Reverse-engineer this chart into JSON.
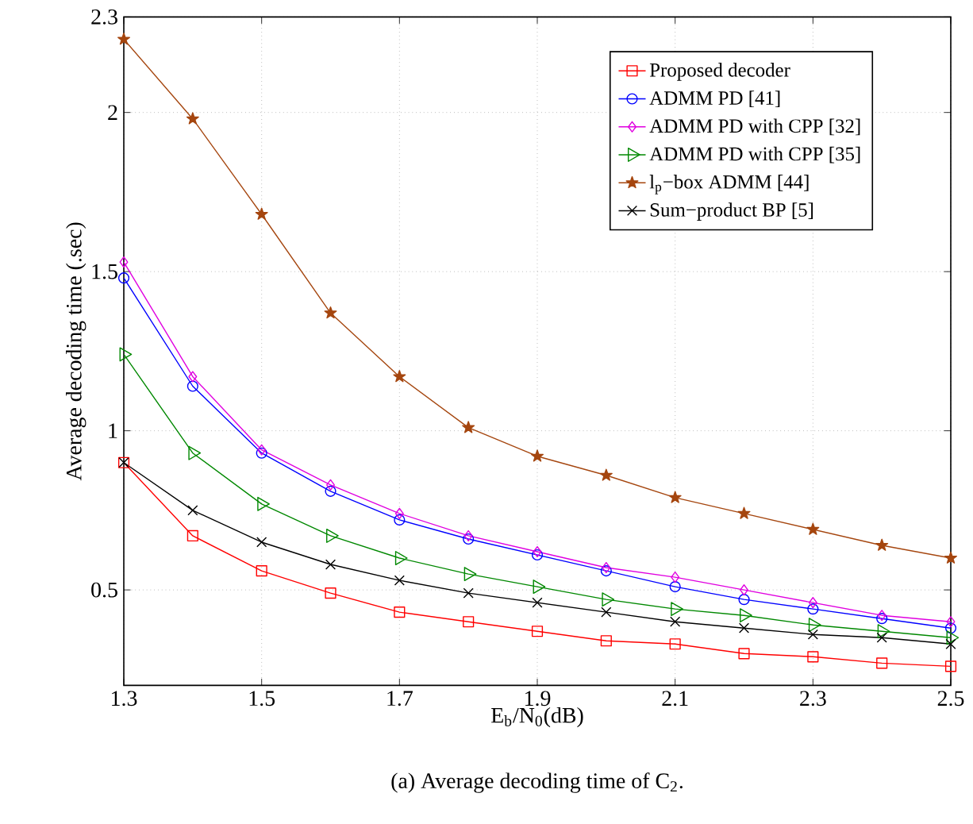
{
  "chart_data": {
    "type": "line",
    "xlabel": "E$_{b}$/N$_{0}$(dB)",
    "ylabel": "Average decoding time (.sec)",
    "annotations": [
      "(a) Average decoding time of C$_{2}$."
    ],
    "x": [
      1.3,
      1.4,
      1.5,
      1.6,
      1.7,
      1.8,
      1.9,
      2.0,
      2.1,
      2.2,
      2.3,
      2.4,
      2.5
    ],
    "xlim": [
      1.3,
      2.5
    ],
    "xticks": [
      1.3,
      1.5,
      1.7,
      1.9,
      2.1,
      2.3,
      2.5
    ],
    "ylim": [
      0.2,
      2.3
    ],
    "yticks": [
      0.5,
      1,
      1.5,
      2,
      2.3
    ],
    "grid": true,
    "legend": "top right",
    "line_style": "solid",
    "series": [
      {
        "name": "Proposed decoder",
        "color": "#ff0000",
        "marker": "square",
        "values": [
          0.9,
          0.67,
          0.56,
          0.49,
          0.43,
          0.4,
          0.37,
          0.34,
          0.33,
          0.3,
          0.29,
          0.27,
          0.26
        ]
      },
      {
        "name": "ADMM PD [41]",
        "color": "#0000ff",
        "marker": "circle",
        "values": [
          1.48,
          1.14,
          0.93,
          0.81,
          0.72,
          0.66,
          0.61,
          0.56,
          0.51,
          0.47,
          0.44,
          0.41,
          0.38
        ]
      },
      {
        "name": "ADMM PD with CPP [32]",
        "color": "#e000e0",
        "marker": "diamond",
        "values": [
          1.53,
          1.17,
          0.94,
          0.83,
          0.74,
          0.67,
          0.62,
          0.57,
          0.54,
          0.5,
          0.46,
          0.42,
          0.4
        ]
      },
      {
        "name": "ADMM PD with CPP [35]",
        "color": "#008800",
        "marker": "triangle",
        "values": [
          1.24,
          0.93,
          0.77,
          0.67,
          0.6,
          0.55,
          0.51,
          0.47,
          0.44,
          0.42,
          0.39,
          0.37,
          0.35
        ]
      },
      {
        "name": "l$_{p}$−box ADMM [44]",
        "color": "#a5460f",
        "marker": "star",
        "values": [
          2.23,
          1.98,
          1.68,
          1.37,
          1.17,
          1.01,
          0.92,
          0.86,
          0.79,
          0.74,
          0.69,
          0.64,
          0.6
        ]
      },
      {
        "name": "Sum−product BP [5]",
        "color": "#000000",
        "marker": "cross",
        "values": [
          0.9,
          0.75,
          0.65,
          0.58,
          0.53,
          0.49,
          0.46,
          0.43,
          0.4,
          0.38,
          0.36,
          0.35,
          0.33
        ]
      }
    ]
  }
}
